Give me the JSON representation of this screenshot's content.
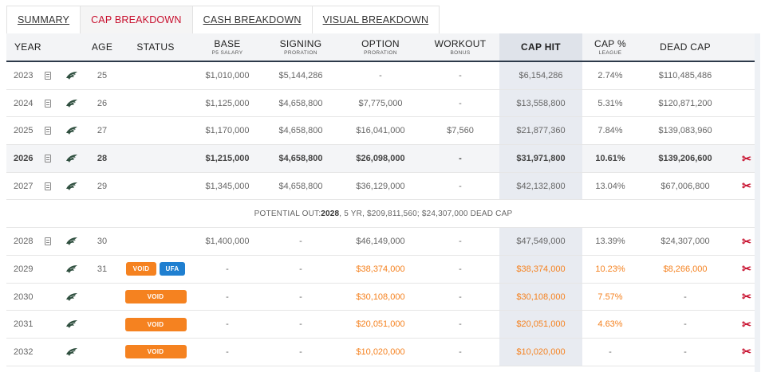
{
  "tabs": [
    "SUMMARY",
    "CAP BREAKDOWN",
    "CASH BREAKDOWN",
    "VISUAL BREAKDOWN"
  ],
  "active_tab": 1,
  "headers": {
    "year": "YEAR",
    "age": "AGE",
    "status": "STATUS",
    "base": "BASE",
    "base_sub": "P5 SALARY",
    "signing": "SIGNING",
    "signing_sub": "PRORATION",
    "option": "OPTION",
    "option_sub": "PRORATION",
    "workout": "WORKOUT",
    "workout_sub": "BONUS",
    "cap_hit": "CAP HIT",
    "cap_pct": "CAP %",
    "cap_pct_sub": "LEAGUE",
    "dead_cap": "DEAD CAP"
  },
  "icons": {
    "document": "document-icon",
    "team_logo": "eagle-logo-icon",
    "cut": "scissors-icon"
  },
  "colors": {
    "accent": "#c8102e",
    "void": "#f58220",
    "ufa": "#1f7fd0",
    "header_rule": "#2d3a4a"
  },
  "rows": [
    {
      "year": "2023",
      "age": "25",
      "base": "$1,010,000",
      "signing": "$5,144,286",
      "option": "-",
      "workout": "-",
      "cap_hit": "$6,154,286",
      "cap_pct": "2.74%",
      "dead_cap": "$110,485,486"
    },
    {
      "year": "2024",
      "age": "26",
      "base": "$1,125,000",
      "signing": "$4,658,800",
      "option": "$7,775,000",
      "workout": "-",
      "cap_hit": "$13,558,800",
      "cap_pct": "5.31%",
      "dead_cap": "$120,871,200"
    },
    {
      "year": "2025",
      "age": "27",
      "base": "$1,170,000",
      "signing": "$4,658,800",
      "option": "$16,041,000",
      "workout": "$7,560",
      "cap_hit": "$21,877,360",
      "cap_pct": "7.84%",
      "dead_cap": "$139,083,960"
    },
    {
      "year": "2026",
      "age": "28",
      "base": "$1,215,000",
      "signing": "$4,658,800",
      "option": "$26,098,000",
      "workout": "-",
      "cap_hit": "$31,971,800",
      "cap_pct": "10.61%",
      "dead_cap": "$139,206,600"
    },
    {
      "year": "2027",
      "age": "29",
      "base": "$1,345,000",
      "signing": "$4,658,800",
      "option": "$36,129,000",
      "workout": "-",
      "cap_hit": "$42,132,800",
      "cap_pct": "13.04%",
      "dead_cap": "$67,006,800"
    },
    {
      "year": "2028",
      "age": "30",
      "base": "$1,400,000",
      "signing": "-",
      "option": "$46,149,000",
      "workout": "-",
      "cap_hit": "$47,549,000",
      "cap_pct": "13.39%",
      "dead_cap": "$24,307,000"
    },
    {
      "year": "2029",
      "age": "31",
      "status": [
        "VOID",
        "UFA"
      ],
      "base": "-",
      "signing": "-",
      "option": "$38,374,000",
      "workout": "-",
      "cap_hit": "$38,374,000",
      "cap_pct": "10.23%",
      "dead_cap": "$8,266,000"
    },
    {
      "year": "2030",
      "age": "",
      "status": [
        "VOID"
      ],
      "base": "-",
      "signing": "-",
      "option": "$30,108,000",
      "workout": "-",
      "cap_hit": "$30,108,000",
      "cap_pct": "7.57%",
      "dead_cap": "-"
    },
    {
      "year": "2031",
      "age": "",
      "status": [
        "VOID"
      ],
      "base": "-",
      "signing": "-",
      "option": "$20,051,000",
      "workout": "-",
      "cap_hit": "$20,051,000",
      "cap_pct": "4.63%",
      "dead_cap": "-"
    },
    {
      "year": "2032",
      "age": "",
      "status": [
        "VOID"
      ],
      "base": "-",
      "signing": "-",
      "option": "$10,020,000",
      "workout": "-",
      "cap_hit": "$10,020,000",
      "cap_pct": "-",
      "dead_cap": "-"
    }
  ],
  "potential_out": {
    "prefix": "POTENTIAL OUT: ",
    "year": "2028",
    "rest": ", 5 YR, $209,811,560; $24,307,000 DEAD CAP"
  }
}
